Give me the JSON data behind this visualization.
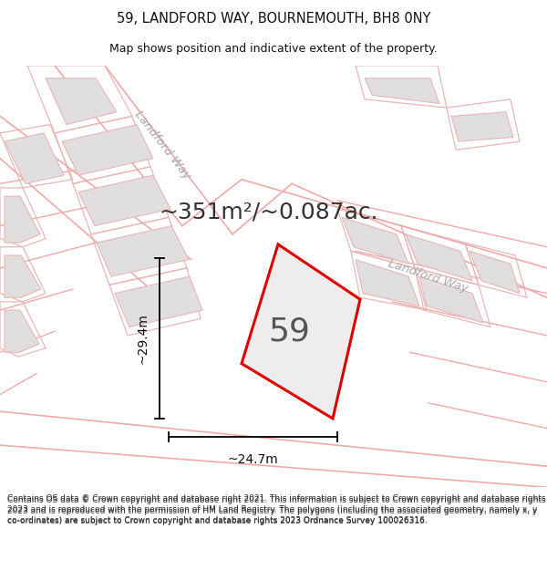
{
  "title": "59, LANDFORD WAY, BOURNEMOUTH, BH8 0NY",
  "subtitle": "Map shows position and indicative extent of the property.",
  "area_text": "~351m²/~0.087ac.",
  "house_number": "59",
  "dim_width": "~24.7m",
  "dim_height": "~29.4m",
  "footer_text": "Contains OS data © Crown copyright and database right 2021. This information is subject to Crown copyright and database rights 2023 and is reproduced with the permission of HM Land Registry. The polygons (including the associated geometry, namely x, y co-ordinates) are subject to Crown copyright and database rights 2023 Ordnance Survey 100026316.",
  "bg_color": "#ffffff",
  "map_bg": "#ffffff",
  "road_outline_color": "#f0aaaa",
  "property_outline_color": "#dd0000",
  "building_fill": "#e0dede",
  "building_outline": "#e8b8b8",
  "street_label_color": "#aaaaaa",
  "title_color": "#111111",
  "dim_color": "#111111",
  "footer_color": "#333333",
  "title_fontsize": 10.5,
  "subtitle_fontsize": 9,
  "area_fontsize": 18,
  "number_fontsize": 26,
  "dim_fontsize": 10,
  "street_fontsize": 9.5,
  "footer_fontsize": 6.5
}
